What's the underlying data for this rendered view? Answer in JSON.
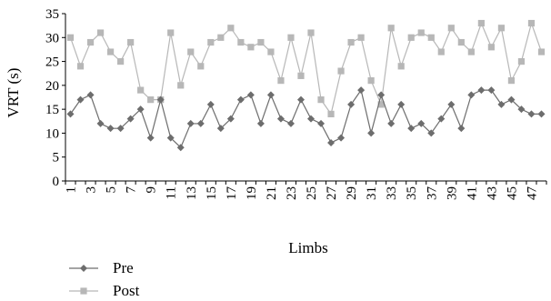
{
  "chart_data": {
    "type": "line",
    "xlabel": "Limbs",
    "ylabel": "VRT (s)",
    "ylim": [
      0,
      35
    ],
    "yticks": [
      0,
      5,
      10,
      15,
      20,
      25,
      30,
      35
    ],
    "x": [
      1,
      2,
      3,
      4,
      5,
      6,
      7,
      8,
      9,
      10,
      11,
      12,
      13,
      14,
      15,
      16,
      17,
      18,
      19,
      20,
      21,
      22,
      23,
      24,
      25,
      26,
      27,
      28,
      29,
      30,
      31,
      32,
      33,
      34,
      35,
      36,
      37,
      38,
      39,
      40,
      41,
      42,
      43,
      44,
      45,
      46,
      47,
      48
    ],
    "xticklabels": [
      "1",
      "3",
      "5",
      "7",
      "9",
      "11",
      "13",
      "15",
      "17",
      "19",
      "21",
      "23",
      "25",
      "27",
      "29",
      "31",
      "33",
      "35",
      "37",
      "39",
      "41",
      "43",
      "45",
      "47"
    ],
    "grid": false,
    "legend_position": "bottom-left",
    "series": [
      {
        "name": "Pre",
        "color": "#6d6d6d",
        "marker": "diamond",
        "values": [
          14,
          17,
          18,
          12,
          11,
          11,
          13,
          15,
          9,
          17,
          9,
          7,
          12,
          12,
          16,
          11,
          13,
          17,
          18,
          12,
          18,
          13,
          12,
          17,
          13,
          12,
          8,
          9,
          16,
          19,
          10,
          18,
          12,
          16,
          11,
          12,
          10,
          13,
          16,
          11,
          18,
          19,
          19,
          16,
          17,
          15,
          14,
          14
        ]
      },
      {
        "name": "Post",
        "color": "#b7b7b7",
        "marker": "square",
        "values": [
          30,
          24,
          29,
          31,
          27,
          25,
          29,
          19,
          17,
          17,
          31,
          20,
          27,
          24,
          29,
          30,
          32,
          29,
          28,
          29,
          27,
          21,
          30,
          22,
          31,
          17,
          14,
          23,
          29,
          30,
          21,
          16,
          32,
          24,
          30,
          31,
          30,
          27,
          32,
          29,
          27,
          33,
          28,
          32,
          21,
          25,
          33,
          27
        ]
      }
    ]
  }
}
